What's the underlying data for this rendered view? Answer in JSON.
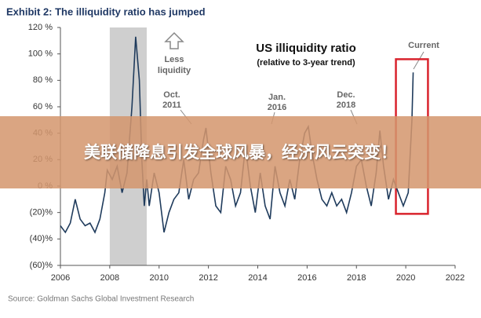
{
  "chart_data": {
    "type": "line",
    "title": "Exhibit 2: The illiquidity ratio has jumped",
    "subtitle": "US illiquidity ratio",
    "subtitle2": "(relative to 3-year trend)",
    "annotations": {
      "less": "Less",
      "liquidity": "liquidity",
      "oct": "Oct.",
      "oct_year": "2011",
      "jan": "Jan.",
      "jan_year": "2016",
      "dec": "Dec.",
      "dec_year": "2018",
      "current": "Current"
    },
    "source": "Source: Goldman Sachs Global Investment Research",
    "banner": "美联储降息引发全球风暴，经济风云突变！",
    "shaded_range": [
      2008,
      2009.5
    ],
    "highlight": {
      "xlim": [
        2019.6,
        2020.9
      ],
      "ylim": [
        -21,
        96
      ],
      "color": "#d9232d"
    },
    "xlim": [
      2006,
      2022
    ],
    "xticks": [
      2006,
      2008,
      2010,
      2012,
      2014,
      2016,
      2018,
      2020,
      2022
    ],
    "ylim": [
      -60,
      120
    ],
    "yticks": [
      {
        "value": 120,
        "label": "120 %"
      },
      {
        "value": 100,
        "label": "100 %"
      },
      {
        "value": 80,
        "label": "80 %"
      },
      {
        "value": 60,
        "label": "60 %"
      },
      {
        "value": 40,
        "label": "40 %"
      },
      {
        "value": 20,
        "label": "20 %"
      },
      {
        "value": 0,
        "label": "0 %"
      },
      {
        "value": -20,
        "label": "(20)%"
      },
      {
        "value": -40,
        "label": "(40)%"
      },
      {
        "value": -60,
        "label": "(60)%"
      }
    ],
    "grid": false,
    "series": [
      {
        "color": "#1f3b5c",
        "x": [
          2006.0,
          2006.2,
          2006.4,
          2006.6,
          2006.8,
          2007.0,
          2007.2,
          2007.4,
          2007.6,
          2007.8,
          2007.9,
          2008.1,
          2008.3,
          2008.5,
          2008.7,
          2008.9,
          2009.05,
          2009.2,
          2009.3,
          2009.4,
          2009.5,
          2009.6,
          2009.8,
          2010.0,
          2010.2,
          2010.4,
          2010.6,
          2010.8,
          2011.0,
          2011.2,
          2011.4,
          2011.6,
          2011.8,
          2011.9,
          2012.1,
          2012.3,
          2012.5,
          2012.7,
          2012.9,
          2013.1,
          2013.3,
          2013.5,
          2013.7,
          2013.9,
          2014.1,
          2014.3,
          2014.5,
          2014.7,
          2014.9,
          2015.1,
          2015.3,
          2015.5,
          2015.7,
          2015.9,
          2016.05,
          2016.2,
          2016.4,
          2016.6,
          2016.8,
          2017.0,
          2017.2,
          2017.4,
          2017.6,
          2017.8,
          2018.0,
          2018.2,
          2018.4,
          2018.6,
          2018.8,
          2018.95,
          2019.1,
          2019.3,
          2019.5,
          2019.7,
          2019.9,
          2020.1,
          2020.25,
          2020.3
        ],
        "values": [
          -30,
          -35,
          -28,
          -10,
          -25,
          -30,
          -28,
          -35,
          -25,
          -5,
          12,
          5,
          15,
          -5,
          10,
          60,
          113,
          80,
          20,
          -15,
          5,
          -15,
          10,
          -5,
          -35,
          -20,
          -10,
          -5,
          20,
          -10,
          5,
          10,
          35,
          44,
          10,
          -15,
          -20,
          15,
          5,
          -15,
          -5,
          30,
          0,
          -20,
          10,
          -15,
          -25,
          15,
          -5,
          -15,
          5,
          -10,
          20,
          40,
          45,
          25,
          5,
          -10,
          -15,
          -5,
          -15,
          -10,
          -20,
          -5,
          15,
          20,
          0,
          -15,
          10,
          42,
          15,
          -10,
          5,
          -5,
          -15,
          -5,
          50,
          86
        ]
      }
    ]
  }
}
